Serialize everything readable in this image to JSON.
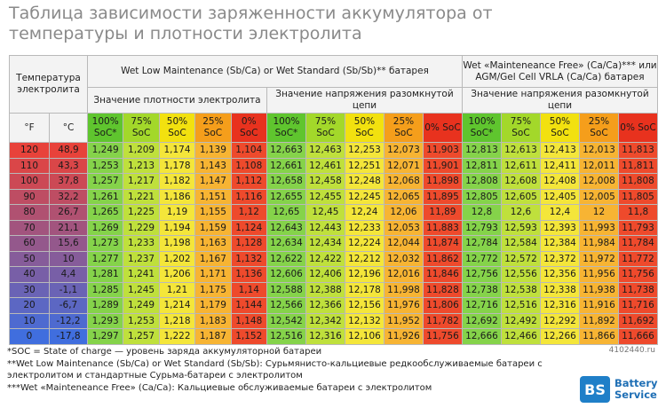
{
  "header": {
    "title": "Таблица зависимости заряженности аккумулятора от температуры и плотности электролита"
  },
  "table": {
    "temp_header": "Температура электролита",
    "group_1": "Wet Low Maintenance (Sb/Ca) or Wet Standard (Sb/Sb)** батарея",
    "group_2": "Wet «Mainteneance Free» (Ca/Ca)*** или AGM/Gel Cell VRLA (Ca/Ca) батарея",
    "sub_1": "Значение плотности электролита",
    "sub_2": "Значение напряжения разомкнутой цепи",
    "sub_3": "Значение напряжения разомкнутой цепи",
    "unit_f": "°F",
    "unit_c": "°C",
    "soc_labels": [
      "100% SoC*",
      "75% SoC",
      "50% SoC",
      "25% SoC",
      "0% SoC"
    ],
    "rows": [
      [
        "120",
        "48,9",
        "1,249",
        "1,209",
        "1,174",
        "1,139",
        "1,104",
        "12,663",
        "12,463",
        "12,253",
        "12,073",
        "11,903",
        "12,813",
        "12,613",
        "12,413",
        "12,013",
        "11,813"
      ],
      [
        "110",
        "43,3",
        "1,253",
        "1,213",
        "1,178",
        "1,143",
        "1,108",
        "12,661",
        "12,461",
        "12,251",
        "12,071",
        "11,901",
        "12,811",
        "12,611",
        "12,411",
        "12,011",
        "11,811"
      ],
      [
        "100",
        "37,8",
        "1,257",
        "1,217",
        "1,182",
        "1,147",
        "1,112",
        "12,658",
        "12,458",
        "12,248",
        "12,068",
        "11,898",
        "12,808",
        "12,608",
        "12,408",
        "12,008",
        "11,808"
      ],
      [
        "90",
        "32,2",
        "1,261",
        "1,221",
        "1,186",
        "1,151",
        "1,116",
        "12,655",
        "12,455",
        "12,245",
        "12,065",
        "11,895",
        "12,805",
        "12,605",
        "12,405",
        "12,005",
        "11,805"
      ],
      [
        "80",
        "26,7",
        "1,265",
        "1,225",
        "1,19",
        "1,155",
        "1,12",
        "12,65",
        "12,45",
        "12,24",
        "12,06",
        "11,89",
        "12,8",
        "12,6",
        "12,4",
        "12",
        "11,8"
      ],
      [
        "70",
        "21,1",
        "1,269",
        "1,229",
        "1,194",
        "1,159",
        "1,124",
        "12,643",
        "12,443",
        "12,233",
        "12,053",
        "11,883",
        "12,793",
        "12,593",
        "12,393",
        "11,993",
        "11,793"
      ],
      [
        "60",
        "15,6",
        "1,273",
        "1,233",
        "1,198",
        "1,163",
        "1,128",
        "12,634",
        "12,434",
        "12,224",
        "12,044",
        "11,874",
        "12,784",
        "12,584",
        "12,384",
        "11,984",
        "11,784"
      ],
      [
        "50",
        "10",
        "1,277",
        "1,237",
        "1,202",
        "1,167",
        "1,132",
        "12,622",
        "12,422",
        "12,212",
        "12,032",
        "11,862",
        "12,772",
        "12,572",
        "12,372",
        "11,972",
        "11,772"
      ],
      [
        "40",
        "4,4",
        "1,281",
        "1,241",
        "1,206",
        "1,171",
        "1,136",
        "12,606",
        "12,406",
        "12,196",
        "12,016",
        "11,846",
        "12,756",
        "12,556",
        "12,356",
        "11,956",
        "11,756"
      ],
      [
        "30",
        "-1,1",
        "1,285",
        "1,245",
        "1,21",
        "1,175",
        "1,14",
        "12,588",
        "12,388",
        "12,178",
        "11,998",
        "11,828",
        "12,738",
        "12,538",
        "12,338",
        "11,938",
        "11,738"
      ],
      [
        "20",
        "-6,7",
        "1,289",
        "1,249",
        "1,214",
        "1,179",
        "1,144",
        "12,566",
        "12,366",
        "12,156",
        "11,976",
        "11,806",
        "12,716",
        "12,516",
        "12,316",
        "11,916",
        "11,716"
      ],
      [
        "10",
        "-12,2",
        "1,293",
        "1,253",
        "1,218",
        "1,183",
        "1,148",
        "12,542",
        "12,342",
        "12,132",
        "11,952",
        "11,782",
        "12,692",
        "12,492",
        "12,292",
        "11,892",
        "11,692"
      ],
      [
        "0",
        "-17,8",
        "1,297",
        "1,257",
        "1,222",
        "1,187",
        "1,152",
        "12,516",
        "12,316",
        "12,106",
        "11,926",
        "11,756",
        "12,666",
        "12,466",
        "12,266",
        "11,866",
        "11,666"
      ]
    ]
  },
  "footnotes": [
    "*SOC = State of charge — уровень заряда аккумуляторной батареи",
    "**Wet Low Maintenance (Sb/Ca) or Wet Standard (Sb/Sb): Сурьмянисто-кальциевые редкообслуживаемые батареи с электролитом и стандартные Сурьма-батареи с электролитом",
    "***Wet «Mainteneance Free» (Ca/Ca): Кальциевые обслуживаемые батареи с электролитом"
  ],
  "watermark": "4102440.ru",
  "logo": {
    "mark": "BS",
    "text": "Battery Service"
  }
}
